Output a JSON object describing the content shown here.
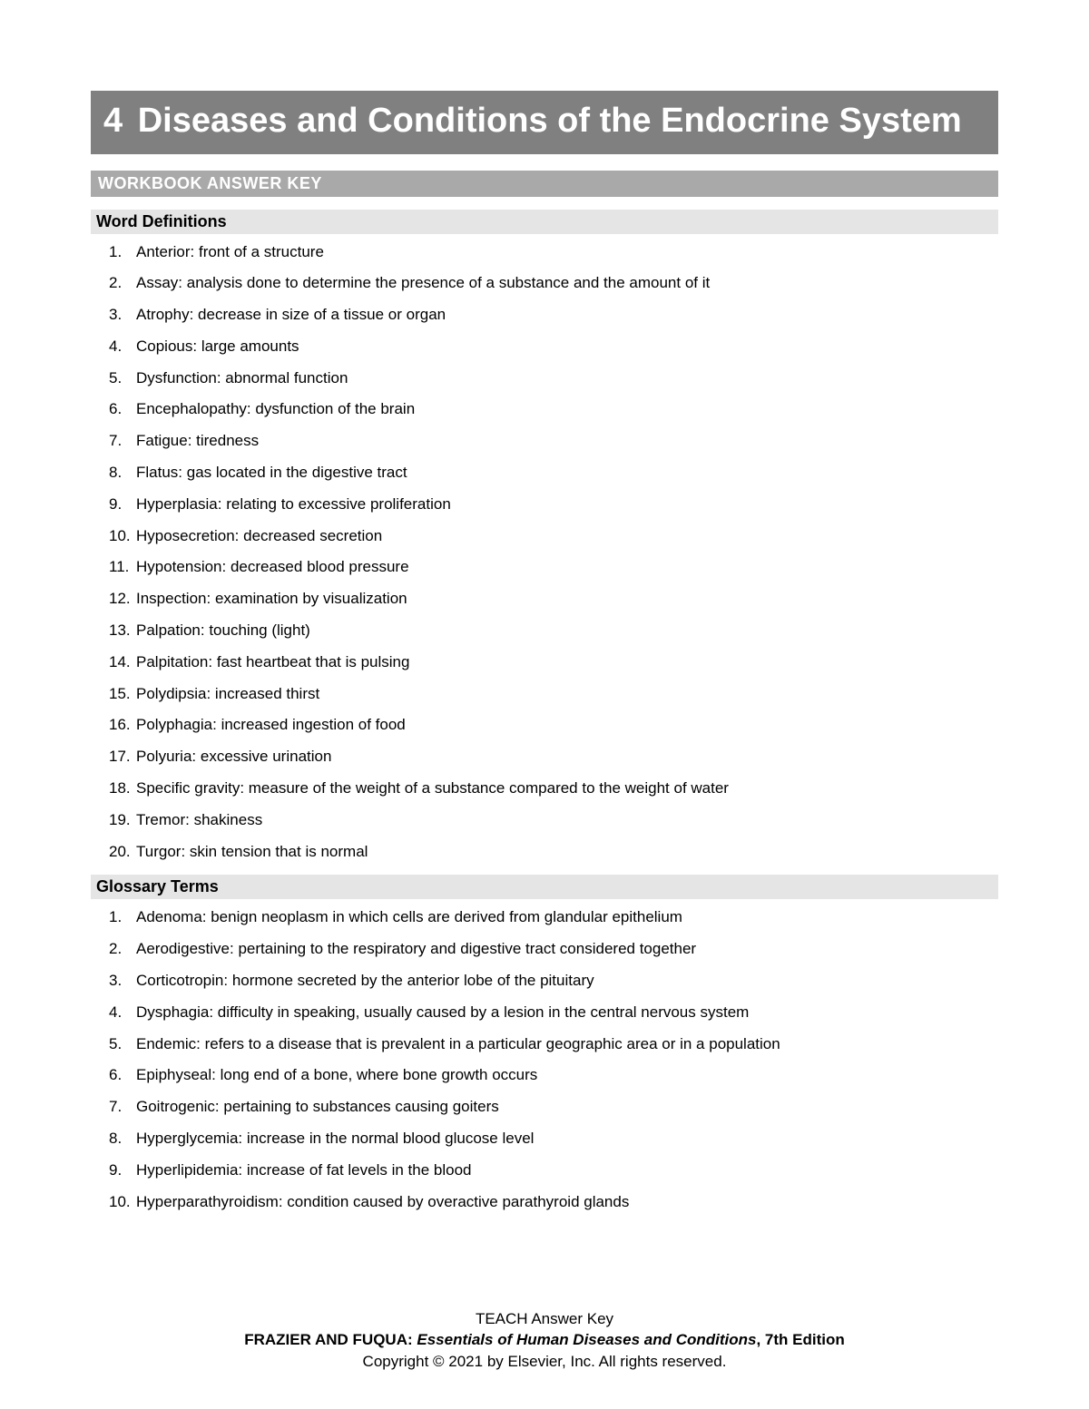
{
  "chapter": {
    "number": "4",
    "title": "Diseases and Conditions of the Endocrine System"
  },
  "answer_key_label": "WORKBOOK ANSWER KEY",
  "sections": [
    {
      "header": "Word Definitions",
      "items": [
        "Anterior: front of a structure",
        "Assay: analysis done to determine the presence of a substance and the amount of it",
        "Atrophy: decrease in size of a tissue or organ",
        "Copious: large amounts",
        "Dysfunction: abnormal function",
        "Encephalopathy: dysfunction of the brain",
        "Fatigue: tiredness",
        "Flatus: gas located in the digestive tract",
        "Hyperplasia: relating to excessive proliferation",
        "Hyposecretion: decreased secretion",
        "Hypotension: decreased blood pressure",
        "Inspection: examination by visualization",
        "Palpation: touching (light)",
        "Palpitation: fast heartbeat that is pulsing",
        "Polydipsia: increased thirst",
        "Polyphagia: increased ingestion of food",
        "Polyuria: excessive urination",
        "Specific gravity: measure of the weight of a substance compared to the weight of water",
        "Tremor: shakiness",
        "Turgor: skin tension that is normal"
      ]
    },
    {
      "header": "Glossary Terms",
      "items": [
        "Adenoma: benign neoplasm in which cells are derived from glandular epithelium",
        "Aerodigestive: pertaining to the respiratory and digestive tract considered together",
        "Corticotropin: hormone secreted by the anterior lobe of the pituitary",
        "Dysphagia: difficulty in speaking, usually caused by a lesion in the central nervous system",
        "Endemic: refers to a disease that is prevalent in a particular geographic area or in a population",
        "Epiphyseal: long end of a bone, where bone growth occurs",
        "Goitrogenic: pertaining to substances causing goiters",
        "Hyperglycemia: increase in the normal blood glucose level",
        "Hyperlipidemia: increase of fat levels in the blood",
        "Hyperparathyroidism: condition caused by overactive parathyroid glands"
      ]
    }
  ],
  "footer": {
    "line1": "TEACH Answer Key",
    "line2_authors": "FRAZIER AND FUQUA: ",
    "line2_title": "Essentials of Human Diseases and Conditions",
    "line2_edition": ", 7th Edition",
    "line3": "Copyright © 2021 by Elsevier, Inc. All rights reserved."
  },
  "colors": {
    "header_bg": "#808080",
    "header_text": "#ffffff",
    "bar_bg": "#a9a9a9",
    "section_bg": "#e5e5e5",
    "body_text": "#000000",
    "page_bg": "#ffffff"
  },
  "typography": {
    "title_fontsize": 38,
    "bar_fontsize": 18,
    "section_fontsize": 18,
    "body_fontsize": 17,
    "footer_fontsize": 17
  }
}
